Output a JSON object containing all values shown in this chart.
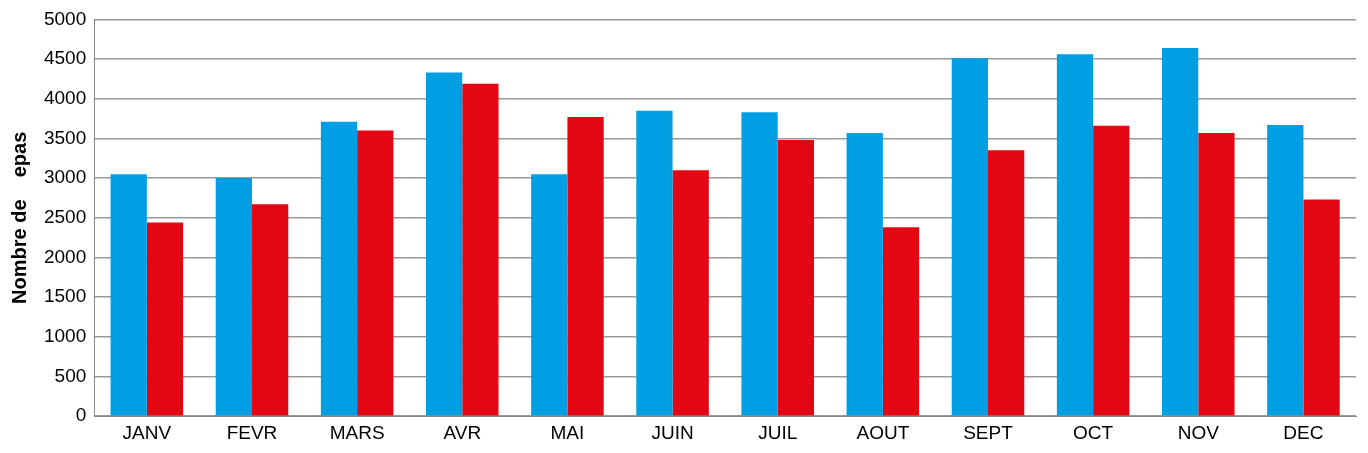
{
  "chart_data": {
    "type": "bar",
    "ylabel": "Nombre de    epas",
    "categories": [
      "JANV",
      "FEVR",
      "MARS",
      "AVR",
      "MAI",
      "JUIN",
      "JUIL",
      "AOUT",
      "SEPT",
      "OCT",
      "NOV",
      "DEC"
    ],
    "series": [
      {
        "color": "#009fe3",
        "values": [
          3050,
          3000,
          3710,
          4330,
          3050,
          3850,
          3830,
          3570,
          4510,
          4560,
          4640,
          3670
        ]
      },
      {
        "color": "#e30613",
        "values": [
          2440,
          2670,
          3600,
          4190,
          3770,
          3100,
          3480,
          2380,
          3350,
          3660,
          3570,
          2730
        ]
      }
    ],
    "ylim": [
      0,
      5000
    ],
    "yticks": [
      0,
      500,
      1000,
      1500,
      2000,
      2500,
      3000,
      3500,
      4000,
      4500,
      5000
    ],
    "grid": "y",
    "legend": false
  }
}
